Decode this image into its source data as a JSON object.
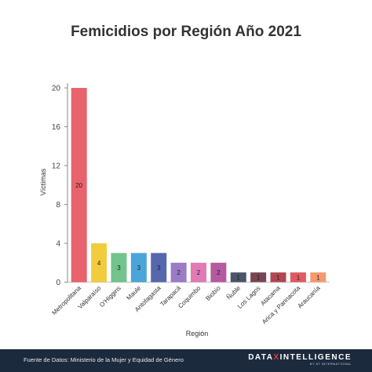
{
  "chart_data": {
    "type": "bar",
    "title": "Femicidios por Región Año 2021",
    "xlabel": "Región",
    "ylabel": "Víctimas",
    "categories": [
      "Metropolitana",
      "Valparaíso",
      "O'Higgins",
      "Maule",
      "Antofagasta",
      "Tarapacá",
      "Coquimbo",
      "Biobío",
      "Ñuble",
      "Los Lagos",
      "Atacama",
      "Arica y Parinacota",
      "Araucanía"
    ],
    "values": [
      20,
      4,
      3,
      3,
      3,
      2,
      2,
      2,
      1,
      1,
      1,
      1,
      1
    ],
    "colors": [
      "#e8636b",
      "#f2cc3f",
      "#72c38c",
      "#4aa6d9",
      "#5668ad",
      "#9b7ac6",
      "#e07bb4",
      "#b55a9f",
      "#4a5569",
      "#7a4453",
      "#b04752",
      "#e05a63",
      "#f49a6c"
    ],
    "ylim": [
      0,
      20
    ],
    "yticks": [
      0,
      4,
      8,
      12,
      16,
      20
    ],
    "grid": false,
    "legend": "none"
  },
  "footer": {
    "source": "Fuente de Datos: Ministerio de la Mujer y Equidad de Género",
    "brand_pre": "DATA",
    "brand_x": "X",
    "brand_post": "INTELLIGENCE",
    "brand_sub": "BY AT INTERNATIONAL"
  }
}
